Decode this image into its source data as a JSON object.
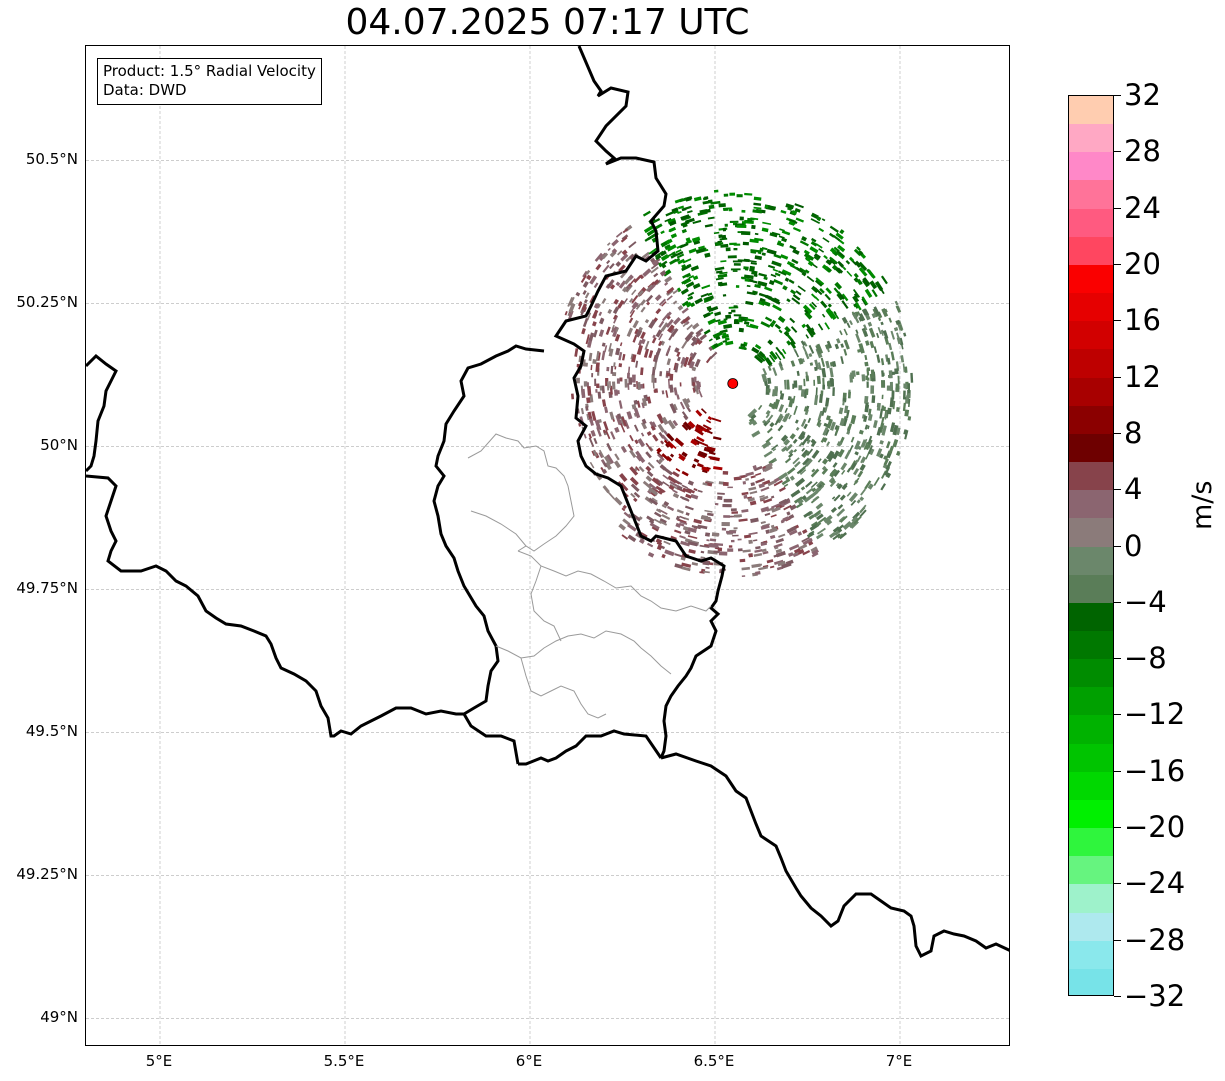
{
  "title": "04.07.2025 07:17 UTC",
  "info": {
    "product": "Product: 1.5° Radial Velocity",
    "source": "Data: DWD"
  },
  "map": {
    "extent": {
      "lon_min": 4.8,
      "lon_max": 7.3,
      "lat_min": 48.95,
      "lat_max": 50.7
    },
    "lat_ticks": [
      {
        "value": 50.5,
        "label": "50.5°N"
      },
      {
        "value": 50.25,
        "label": "50.25°N"
      },
      {
        "value": 50.0,
        "label": "50°N"
      },
      {
        "value": 49.75,
        "label": "49.75°N"
      },
      {
        "value": 49.5,
        "label": "49.5°N"
      },
      {
        "value": 49.25,
        "label": "49.25°N"
      },
      {
        "value": 49.0,
        "label": "49°N"
      }
    ],
    "lon_ticks": [
      {
        "value": 5.0,
        "label": "5°E"
      },
      {
        "value": 5.5,
        "label": "5.5°E"
      },
      {
        "value": 6.0,
        "label": "6°E"
      },
      {
        "value": 6.5,
        "label": "6.5°E"
      },
      {
        "value": 7.0,
        "label": "7°E"
      }
    ],
    "radar_site": {
      "lon": 6.548,
      "lat": 50.11,
      "color": "#ff0000"
    },
    "radar_range_deg": {
      "lon": 0.49,
      "lat": 0.34
    },
    "grid": true
  },
  "colorbar": {
    "unit": "m/s",
    "min": -32,
    "max": 32,
    "tick_labels": [
      "32",
      "28",
      "24",
      "20",
      "16",
      "12",
      "8",
      "4",
      "0",
      "−4",
      "−8",
      "−12",
      "−16",
      "−20",
      "−24",
      "−28",
      "−32"
    ],
    "colors": [
      "#77e3e8",
      "#8ae8ec",
      "#aee9ee",
      "#9ef2cb",
      "#66f47f",
      "#2ff53d",
      "#00f000",
      "#00d800",
      "#00c400",
      "#00b200",
      "#00a000",
      "#008c00",
      "#007800",
      "#006400",
      "#5a7d58",
      "#6b876b",
      "#8b7b7a",
      "#8b6570",
      "#87434b",
      "#6e0000",
      "#8b0000",
      "#a80000",
      "#be0000",
      "#d20000",
      "#e60000",
      "#fa0000",
      "#ff4660",
      "#ff5a80",
      "#ff7399",
      "#ff88c8",
      "#ffa8c4",
      "#ffcdb0"
    ]
  }
}
